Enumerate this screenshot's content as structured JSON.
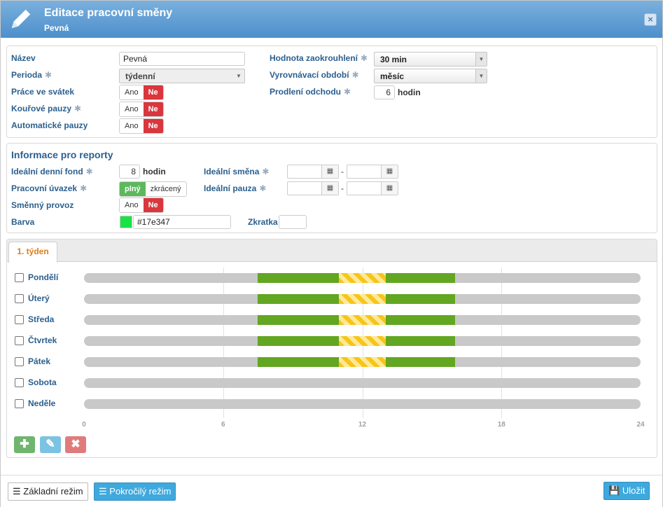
{
  "dialog": {
    "title": "Editace pracovní směny",
    "subtitle": "Pevná",
    "close_label": "×"
  },
  "form": {
    "nazev_label": "Název",
    "nazev_value": "Pevná",
    "perioda_label": "Perioda",
    "perioda_value": "týdenní",
    "svatek_label": "Práce ve svátek",
    "kourove_label": "Kouřové pauzy",
    "auto_label": "Automatické pauzy",
    "zaokrouhleni_label": "Hodnota zaokrouhlení",
    "zaokrouhleni_value": "30 min",
    "vyrovnavaci_label": "Vyrovnávací období",
    "vyrovnavaci_value": "měsíc",
    "prodleni_label": "Prodlení odchodu",
    "prodleni_value": "6",
    "prodleni_unit": "hodin",
    "ano": "Ano",
    "ne": "Ne",
    "asterisk": "✱"
  },
  "reports": {
    "title": "Informace pro reporty",
    "fond_label": "Ideální denní fond",
    "fond_value": "8",
    "fond_unit": "hodin",
    "uvazek_label": "Pracovní úvazek",
    "plny": "plný",
    "zkraceny": "zkrácený",
    "provoz_label": "Směnný provoz",
    "barva_label": "Barva",
    "barva_value": "#17e347",
    "smena_label": "Ideální směna",
    "pauza_label": "Ideální pauza",
    "zkratka_label": "Zkratka",
    "dash": "-"
  },
  "schedule": {
    "tab_label": "1. týden",
    "days": [
      "Pondělí",
      "Úterý",
      "Středa",
      "Čtvrtek",
      "Pátek",
      "Sobota",
      "Neděle"
    ],
    "ticks": [
      "0",
      "6",
      "12",
      "18",
      "24"
    ]
  },
  "chart_data": {
    "type": "bar",
    "x_range": [
      0,
      24
    ],
    "x_ticks": [
      0,
      6,
      12,
      18,
      24
    ],
    "days": [
      {
        "name": "Pondělí",
        "work": [
          [
            7.5,
            11
          ],
          [
            13,
            16
          ]
        ],
        "pause": [
          [
            11,
            13
          ]
        ]
      },
      {
        "name": "Úterý",
        "work": [
          [
            7.5,
            11
          ],
          [
            13,
            16
          ]
        ],
        "pause": [
          [
            11,
            13
          ]
        ]
      },
      {
        "name": "Středa",
        "work": [
          [
            7.5,
            11
          ],
          [
            13,
            16
          ]
        ],
        "pause": [
          [
            11,
            13
          ]
        ]
      },
      {
        "name": "Čtvrtek",
        "work": [
          [
            7.5,
            11
          ],
          [
            13,
            16
          ]
        ],
        "pause": [
          [
            11,
            13
          ]
        ]
      },
      {
        "name": "Pátek",
        "work": [
          [
            7.5,
            11
          ],
          [
            13,
            16
          ]
        ],
        "pause": [
          [
            11,
            13
          ]
        ]
      },
      {
        "name": "Sobota",
        "work": [],
        "pause": []
      },
      {
        "name": "Neděle",
        "work": [],
        "pause": []
      }
    ],
    "colors": {
      "work": "#62a621",
      "pause": "#f5c518",
      "empty": "#c9c9c9"
    }
  },
  "footer": {
    "zakladni": "Základní režim",
    "pokrocily": "Pokročilý režim",
    "ulozit": "Uložit"
  }
}
